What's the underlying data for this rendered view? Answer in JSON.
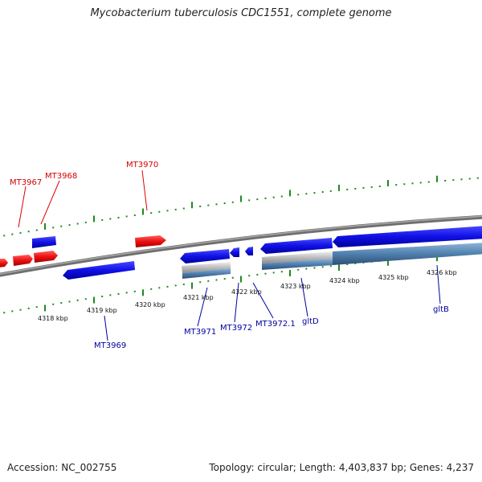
{
  "header": {
    "title": "Mycobacterium tuberculosis CDC1551, complete genome"
  },
  "footer": {
    "accession": "Accession: NC_002755",
    "summary": "Topology: circular; Length: 4,403,837 bp; Genes: 4,237"
  },
  "colors": {
    "forward_gene": "#e00000",
    "reverse_gene": "#0000e8",
    "backbone": "#808080",
    "tick": "#1f8a1f",
    "label_forward": "#d40000",
    "label_reverse": "#0000a0"
  },
  "scale": {
    "unit": "kbp",
    "ticks": [
      "4318 kbp",
      "4319 kbp",
      "4320 kbp",
      "4321 kbp",
      "4322 kbp",
      "4323 kbp",
      "4324 kbp",
      "4325 kbp",
      "4326 kbp"
    ]
  },
  "genes": {
    "forward": [
      "MT3967",
      "MT3968",
      "MT3970"
    ],
    "reverse": [
      "MT3969",
      "MT3971",
      "MT3972",
      "MT3972.1",
      "gltD",
      "gltB"
    ]
  }
}
